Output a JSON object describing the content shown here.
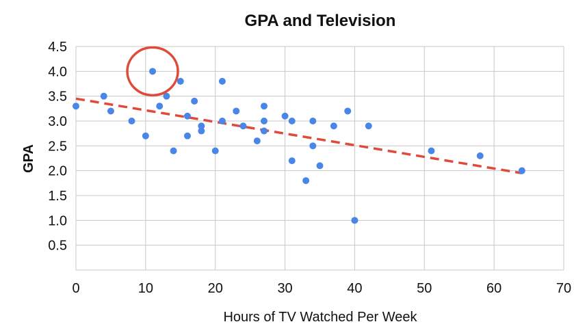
{
  "chart_data": {
    "type": "scatter",
    "title": "GPA and Television",
    "xlabel": "Hours of TV Watched Per Week",
    "ylabel": "GPA",
    "xlim": [
      0,
      70
    ],
    "ylim": [
      0,
      4.5
    ],
    "x_ticks": [
      "0",
      "10",
      "20",
      "30",
      "40",
      "50",
      "60",
      "70"
    ],
    "x_tick_values": [
      0,
      10,
      20,
      30,
      40,
      50,
      60,
      70
    ],
    "y_ticks": [
      "0.5",
      "1.0",
      "1.5",
      "2.0",
      "2.5",
      "3.0",
      "3.5",
      "4.0",
      "4.5"
    ],
    "y_tick_values": [
      0.5,
      1.0,
      1.5,
      2.0,
      2.5,
      3.0,
      3.5,
      4.0,
      4.5
    ],
    "grid": true,
    "point_color": "#4a86e8",
    "trendline_color": "#e04a3a",
    "highlight_color": "#e04a3a",
    "points": [
      {
        "x": 0,
        "y": 3.3
      },
      {
        "x": 4,
        "y": 3.5
      },
      {
        "x": 5,
        "y": 3.2
      },
      {
        "x": 8,
        "y": 3.0
      },
      {
        "x": 10,
        "y": 2.7
      },
      {
        "x": 11,
        "y": 4.0
      },
      {
        "x": 12,
        "y": 3.3
      },
      {
        "x": 13,
        "y": 3.5
      },
      {
        "x": 14,
        "y": 2.4
      },
      {
        "x": 15,
        "y": 3.8
      },
      {
        "x": 16,
        "y": 3.1
      },
      {
        "x": 16,
        "y": 2.7
      },
      {
        "x": 17,
        "y": 3.4
      },
      {
        "x": 18,
        "y": 2.9
      },
      {
        "x": 18,
        "y": 2.8
      },
      {
        "x": 20,
        "y": 2.4
      },
      {
        "x": 21,
        "y": 3.8
      },
      {
        "x": 21,
        "y": 3.0
      },
      {
        "x": 23,
        "y": 3.2
      },
      {
        "x": 24,
        "y": 2.9
      },
      {
        "x": 26,
        "y": 2.6
      },
      {
        "x": 27,
        "y": 3.3
      },
      {
        "x": 27,
        "y": 3.0
      },
      {
        "x": 27,
        "y": 2.8
      },
      {
        "x": 30,
        "y": 3.1
      },
      {
        "x": 31,
        "y": 3.0
      },
      {
        "x": 31,
        "y": 2.2
      },
      {
        "x": 33,
        "y": 1.8
      },
      {
        "x": 34,
        "y": 3.0
      },
      {
        "x": 34,
        "y": 2.5
      },
      {
        "x": 35,
        "y": 2.1
      },
      {
        "x": 37,
        "y": 2.9
      },
      {
        "x": 39,
        "y": 3.2
      },
      {
        "x": 40,
        "y": 1.0
      },
      {
        "x": 42,
        "y": 2.9
      },
      {
        "x": 51,
        "y": 2.4
      },
      {
        "x": 58,
        "y": 2.3
      },
      {
        "x": 64,
        "y": 2.0
      }
    ],
    "trendline": {
      "x": [
        0,
        64
      ],
      "y": [
        3.45,
        1.95
      ]
    },
    "highlight": {
      "x": 11,
      "y": 4.0
    }
  }
}
